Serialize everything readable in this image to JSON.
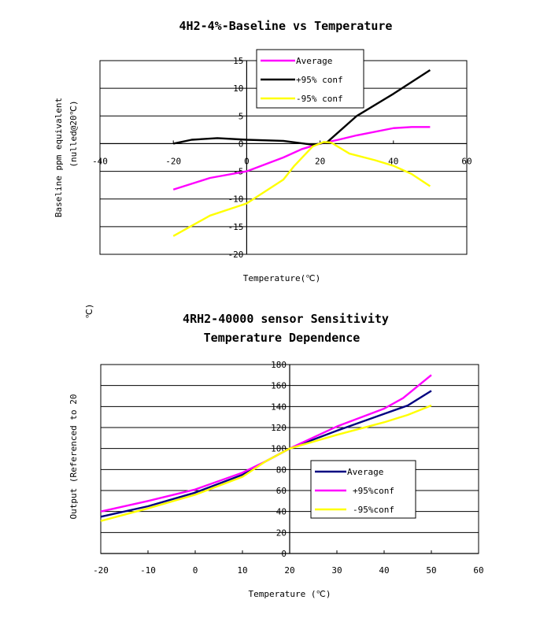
{
  "chart_data": [
    {
      "type": "line",
      "title": "4H2-4%-Baseline vs Temperature",
      "xlabel": "Temperature(℃)",
      "ylabel": "Baseline ppm equivalent (nulled@20℃)",
      "xlim": [
        -40,
        60
      ],
      "ylim": [
        -20,
        15
      ],
      "xticks": [
        "-40",
        "-20",
        "0",
        "20",
        "40",
        "60"
      ],
      "yticks": [
        "15",
        "10",
        "5",
        "0",
        "-5",
        "-10",
        "-15",
        "-20"
      ],
      "grid": true,
      "legend": "top-center",
      "series": [
        {
          "name": "Average",
          "color": "#ff00ff",
          "points": [
            [
              -20,
              -8.3
            ],
            [
              -10,
              -6.2
            ],
            [
              0,
              -5
            ],
            [
              10,
              -2.5
            ],
            [
              15,
              -1
            ],
            [
              20,
              0
            ],
            [
              25,
              0.7
            ],
            [
              30,
              1.5
            ],
            [
              40,
              2.8
            ],
            [
              45,
              3
            ],
            [
              50,
              3
            ]
          ]
        },
        {
          "name": "+95% conf",
          "color": "#000000",
          "points": [
            [
              -20,
              0
            ],
            [
              -15,
              0.7
            ],
            [
              -8,
              1
            ],
            [
              0,
              0.7
            ],
            [
              10,
              0.5
            ],
            [
              18,
              -0.2
            ],
            [
              20,
              0
            ],
            [
              22,
              0.3
            ],
            [
              30,
              5
            ],
            [
              40,
              9
            ],
            [
              50,
              13.3
            ]
          ]
        },
        {
          "name": "-95% conf",
          "color": "#ffff00",
          "points": [
            [
              -20,
              -16.7
            ],
            [
              -10,
              -13
            ],
            [
              0,
              -10.8
            ],
            [
              10,
              -6.5
            ],
            [
              13,
              -4
            ],
            [
              18,
              -0.5
            ],
            [
              21,
              0.3
            ],
            [
              23,
              0.2
            ],
            [
              28,
              -1.8
            ],
            [
              35,
              -3
            ],
            [
              40,
              -4
            ],
            [
              45,
              -5.5
            ],
            [
              50,
              -7.7
            ]
          ]
        }
      ]
    },
    {
      "type": "line",
      "title": "4RH2-40000 sensor Sensitivity",
      "subtitle": "Temperature Dependence",
      "xlabel": "Temperature (℃)",
      "ylabel": "Output (Referenced to 20 ℃)",
      "xlim": [
        -20,
        60
      ],
      "ylim": [
        0,
        180
      ],
      "xticks": [
        "-20",
        "-10",
        "0",
        "10",
        "20",
        "30",
        "40",
        "50",
        "60"
      ],
      "yticks": [
        "180",
        "160",
        "140",
        "120",
        "100",
        "80",
        "60",
        "40",
        "20",
        "0"
      ],
      "grid": true,
      "legend": "center-right",
      "series": [
        {
          "name": "Average",
          "color": "#000080",
          "points": [
            [
              -20,
              35
            ],
            [
              -10,
              45
            ],
            [
              0,
              58
            ],
            [
              10,
              75
            ],
            [
              15,
              88
            ],
            [
              20,
              100
            ],
            [
              30,
              117
            ],
            [
              40,
              133
            ],
            [
              45,
              141
            ],
            [
              50,
              155
            ]
          ]
        },
        {
          "name": "+95%conf",
          "color": "#ff00ff",
          "points": [
            [
              -20,
              40
            ],
            [
              -10,
              50
            ],
            [
              0,
              61
            ],
            [
              10,
              77
            ],
            [
              15,
              88
            ],
            [
              20,
              100
            ],
            [
              30,
              121
            ],
            [
              40,
              138
            ],
            [
              44,
              148
            ],
            [
              50,
              170
            ]
          ]
        },
        {
          "name": "-95%conf",
          "color": "#ffff00",
          "points": [
            [
              -20,
              31
            ],
            [
              -10,
              43
            ],
            [
              0,
              56
            ],
            [
              10,
              73
            ],
            [
              15,
              88
            ],
            [
              20,
              100
            ],
            [
              30,
              113
            ],
            [
              40,
              125
            ],
            [
              45,
              132
            ],
            [
              50,
              141
            ]
          ]
        }
      ]
    }
  ]
}
